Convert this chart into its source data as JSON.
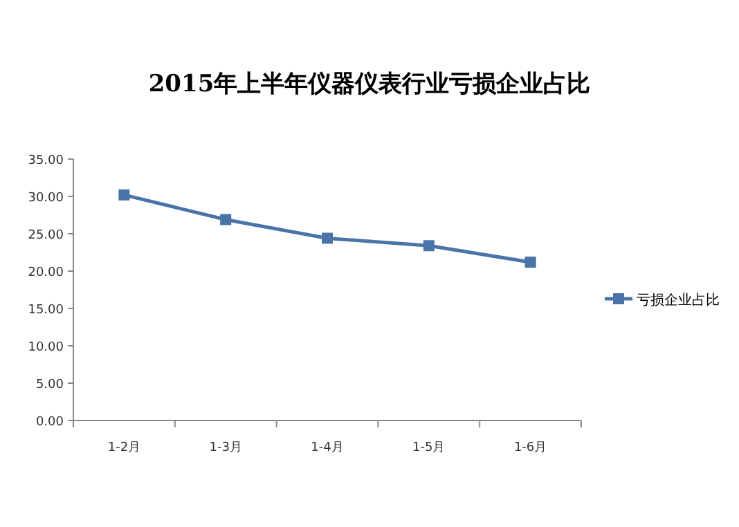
{
  "chart_data": {
    "type": "line",
    "title": "2015年上半年仪器仪表行业亏损企业占比",
    "categories": [
      "1-2月",
      "1-3月",
      "1-4月",
      "1-5月",
      "1-6月"
    ],
    "series": [
      {
        "name": "亏损企业占比",
        "color": "#4a74a8",
        "values": [
          30.2,
          26.9,
          24.4,
          23.4,
          21.2
        ]
      }
    ],
    "ylim": [
      0,
      35
    ],
    "yticks": [
      {
        "value": 0,
        "label": "0.00"
      },
      {
        "value": 5,
        "label": "5.00"
      },
      {
        "value": 10,
        "label": "10.00"
      },
      {
        "value": 15,
        "label": "15.00"
      },
      {
        "value": 20,
        "label": "20.00"
      },
      {
        "value": 25,
        "label": "25.00"
      },
      {
        "value": 30,
        "label": "30.00"
      },
      {
        "value": 35,
        "label": "35.00"
      }
    ],
    "marker": "square",
    "legend": "right",
    "grid": false
  }
}
